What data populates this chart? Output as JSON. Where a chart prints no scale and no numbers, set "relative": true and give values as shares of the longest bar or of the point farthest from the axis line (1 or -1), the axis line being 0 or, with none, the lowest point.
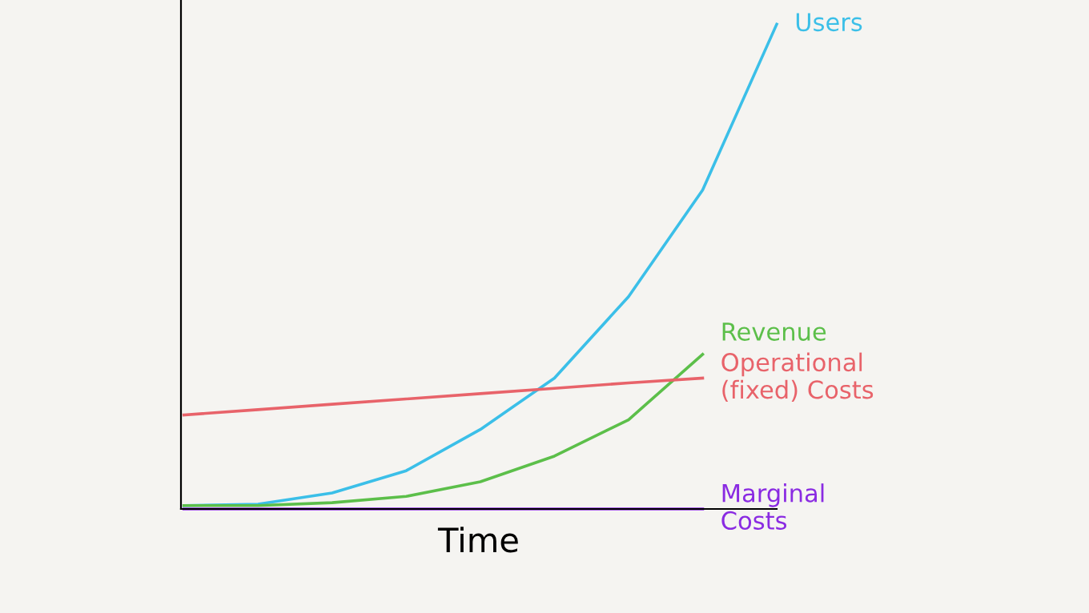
{
  "chart_data": {
    "type": "line",
    "relative": true,
    "xlabel": "Time",
    "categories": [
      null,
      null,
      null,
      null,
      null,
      null,
      null,
      null,
      null
    ],
    "marker": "none",
    "line_style": "solid",
    "legend": false,
    "grid": false,
    "tick_labels": false,
    "series": [
      {
        "name": "Users",
        "color": "#3bbfe8",
        "values": [
          0.007,
          0.01,
          0.033,
          0.079,
          0.164,
          0.27,
          0.438,
          0.658,
          1
        ]
      },
      {
        "name": "Revenue",
        "color": "#5cbf4a",
        "values": [
          0.007,
          0.007,
          0.013,
          0.026,
          0.056,
          0.109,
          0.184,
          0.319,
          null
        ]
      },
      {
        "name": "Operational\n(fixed) Costs",
        "color": "#e8636a",
        "values": [
          0.194,
          0.205,
          0.216,
          0.227,
          0.238,
          0.249,
          0.26,
          0.27,
          null
        ]
      },
      {
        "name": "Marginal\nCosts",
        "color": "#8a2be2",
        "values": [
          0,
          0,
          0,
          0,
          0,
          0,
          0,
          0,
          null
        ]
      }
    ]
  }
}
